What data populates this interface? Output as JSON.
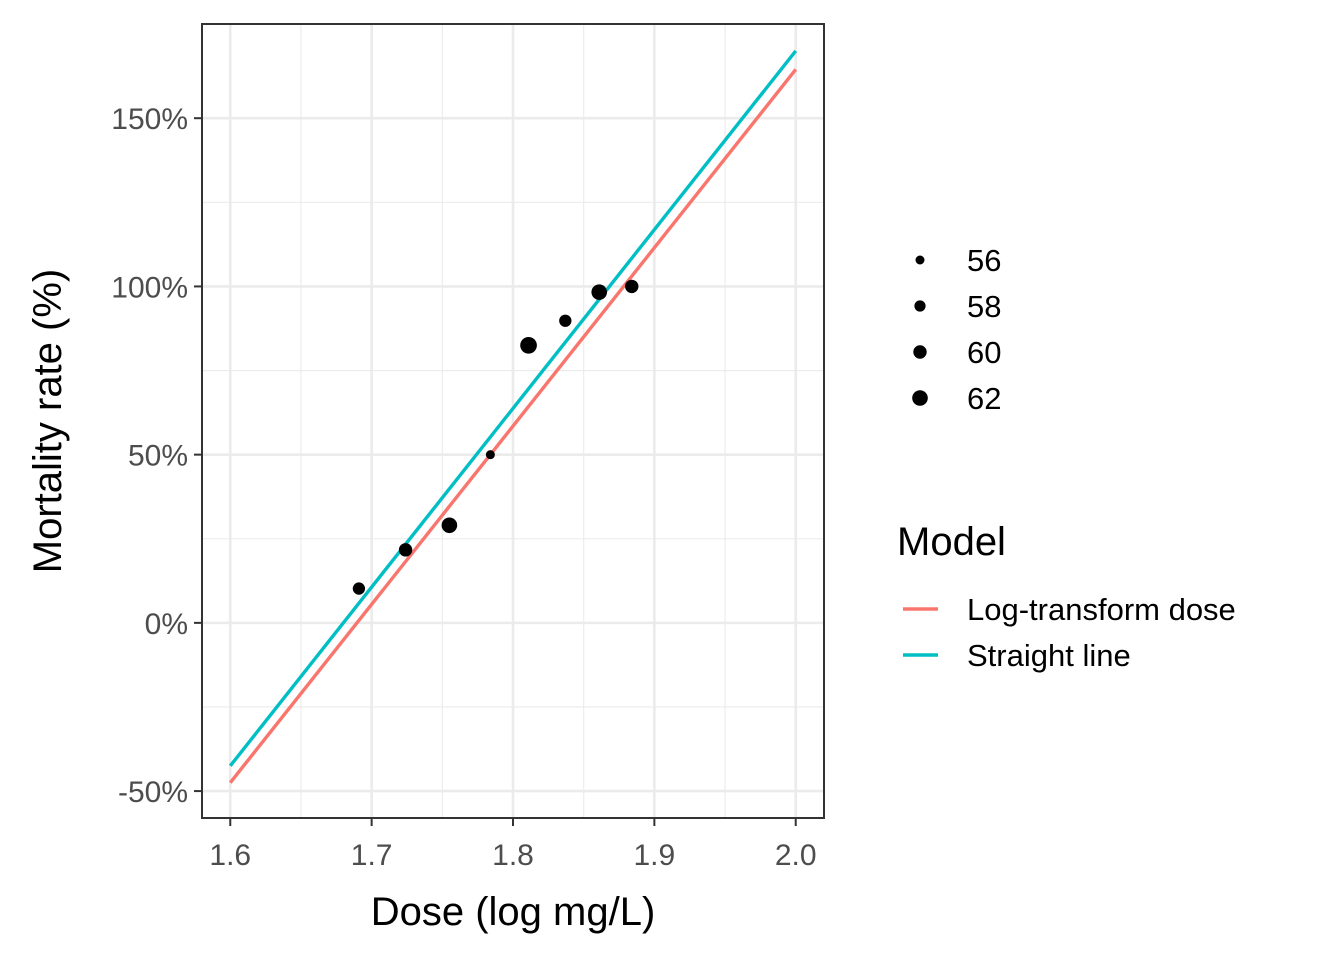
{
  "chart_data": {
    "type": "scatter",
    "xlabel": "Dose (log mg/L)",
    "ylabel": "Mortality rate (%)",
    "xlim": [
      1.58,
      2.02
    ],
    "ylim": [
      -58,
      178
    ],
    "x_ticks": [
      {
        "value": 1.6,
        "label": "1.6"
      },
      {
        "value": 1.7,
        "label": "1.7"
      },
      {
        "value": 1.8,
        "label": "1.8"
      },
      {
        "value": 1.9,
        "label": "1.9"
      },
      {
        "value": 2.0,
        "label": "2.0"
      }
    ],
    "y_ticks": [
      {
        "value": -50,
        "label": "-50%"
      },
      {
        "value": 0,
        "label": "0%"
      },
      {
        "value": 50,
        "label": "50%"
      },
      {
        "value": 100,
        "label": "100%"
      },
      {
        "value": 150,
        "label": "150%"
      }
    ],
    "grid": true,
    "points": [
      {
        "x": 1.691,
        "y": 10.2,
        "size": 59
      },
      {
        "x": 1.724,
        "y": 21.7,
        "size": 60
      },
      {
        "x": 1.755,
        "y": 29.0,
        "size": 62
      },
      {
        "x": 1.784,
        "y": 50.0,
        "size": 56
      },
      {
        "x": 1.811,
        "y": 82.5,
        "size": 63
      },
      {
        "x": 1.837,
        "y": 89.8,
        "size": 59
      },
      {
        "x": 1.861,
        "y": 98.3,
        "size": 62
      },
      {
        "x": 1.884,
        "y": 100.0,
        "size": 60
      }
    ],
    "size_legend": {
      "title": "",
      "entries": [
        {
          "label": "56",
          "value": 56
        },
        {
          "label": "58",
          "value": 58
        },
        {
          "label": "60",
          "value": 60
        },
        {
          "label": "62",
          "value": 62
        }
      ]
    },
    "series": [
      {
        "name": "Log-transform dose",
        "color": "#F8766D",
        "x": [
          1.6,
          2.0
        ],
        "y": [
          -47.5,
          164.5
        ]
      },
      {
        "name": "Straight line",
        "color": "#00BFC4",
        "x": [
          1.6,
          2.0
        ],
        "y": [
          -42.5,
          170.0
        ]
      }
    ],
    "legend": {
      "title": "Model",
      "placement": "right"
    }
  }
}
